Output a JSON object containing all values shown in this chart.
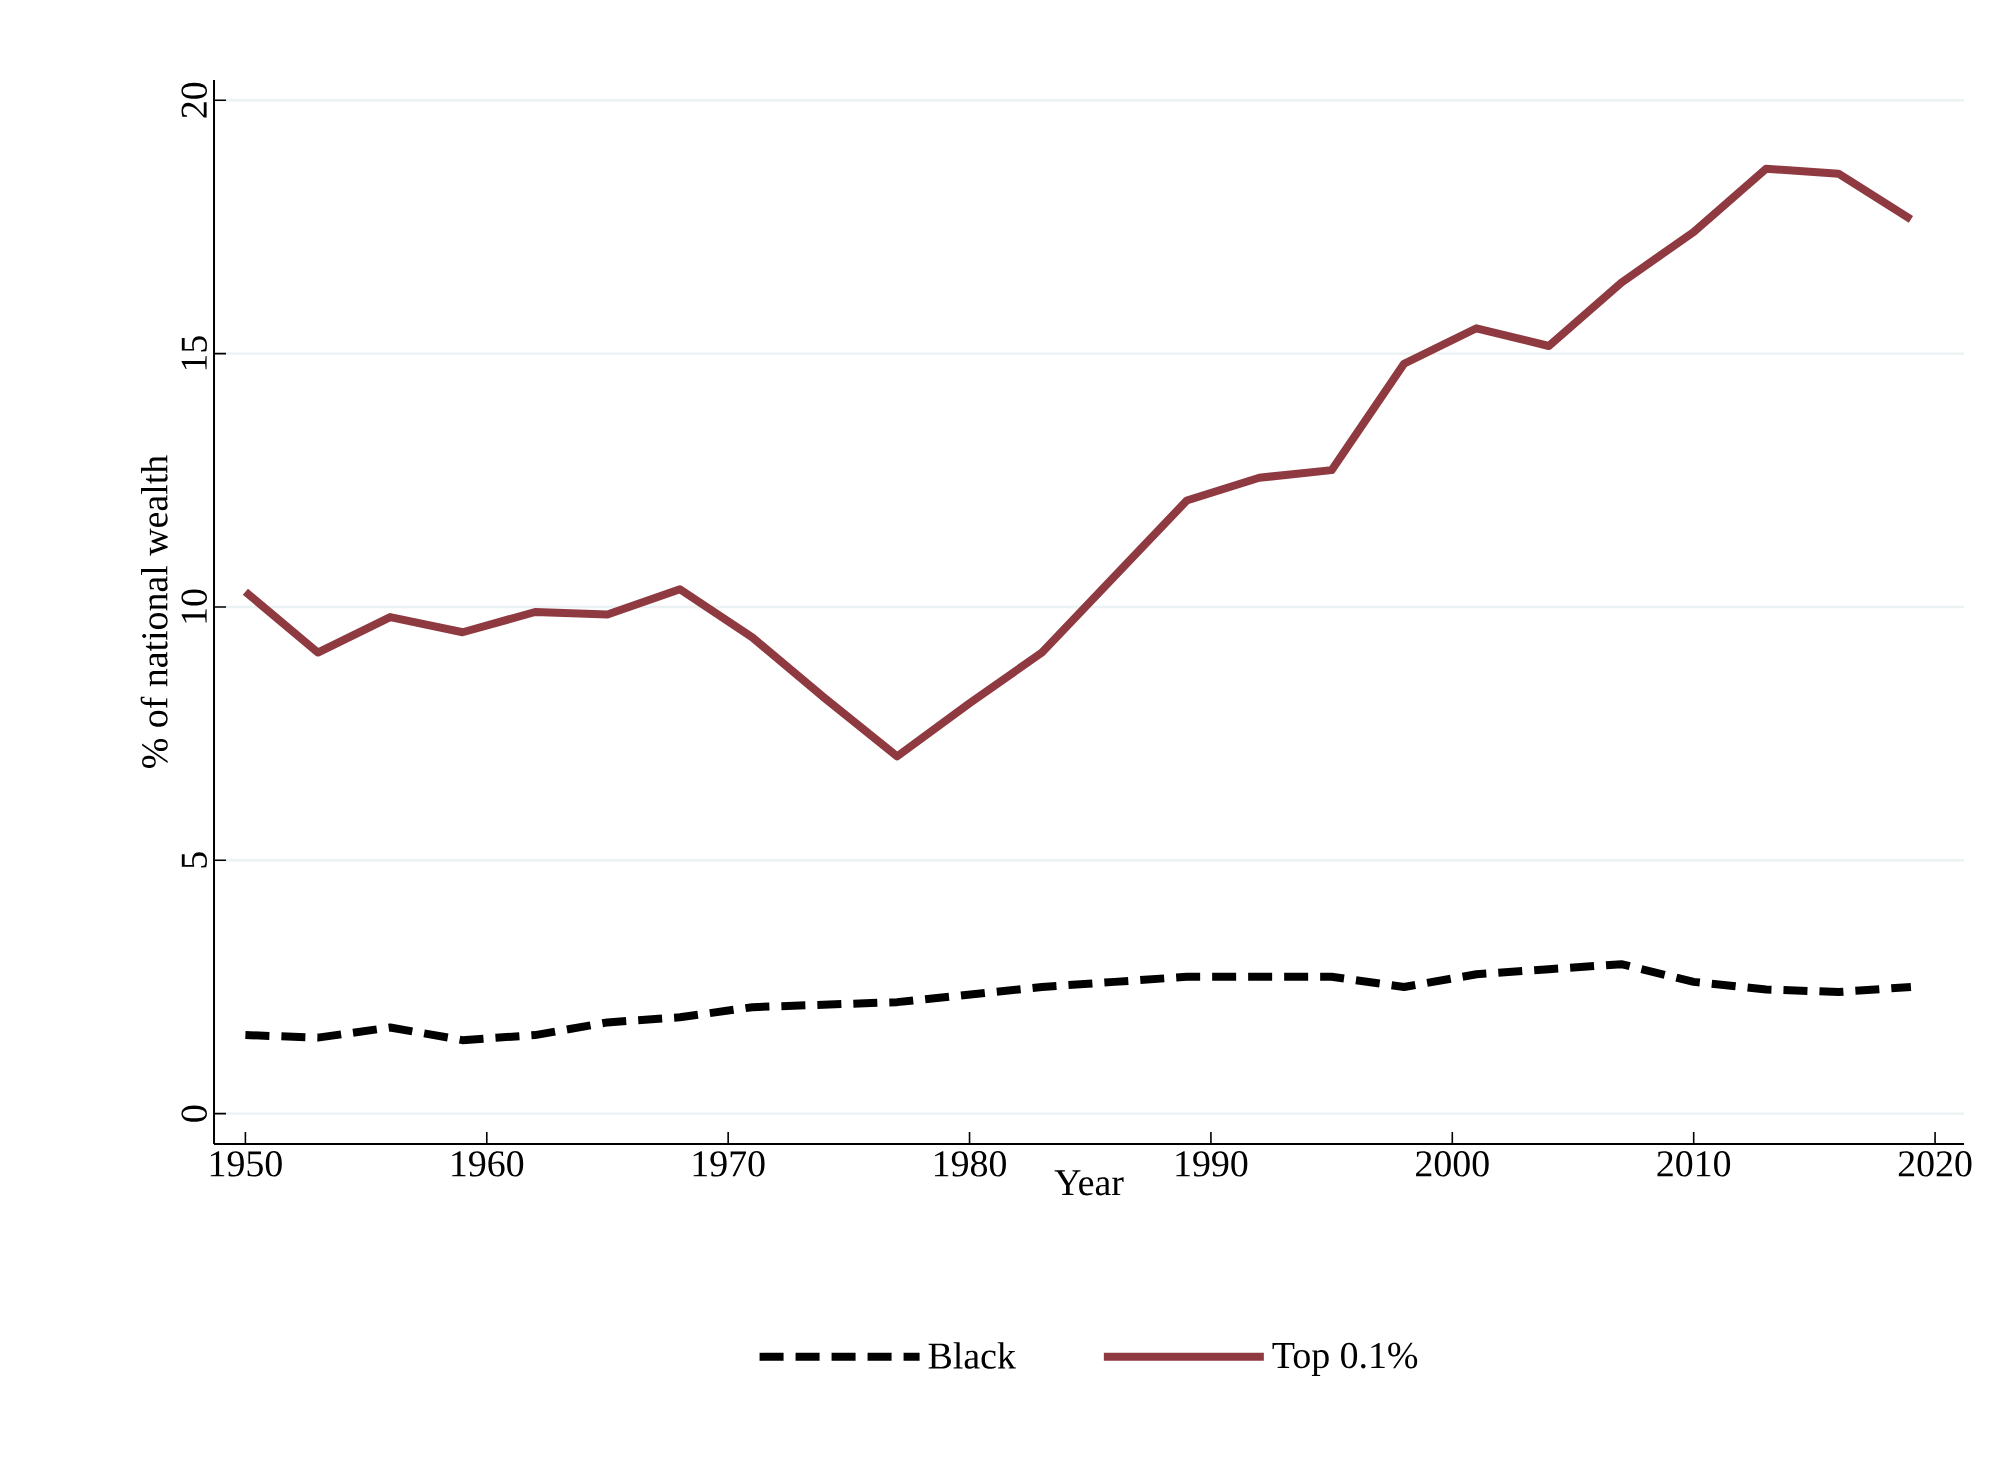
{
  "chart_data": {
    "type": "line",
    "xlabel": "Year",
    "ylabel": "% of national wealth",
    "x": [
      1950,
      1953,
      1956,
      1959,
      1962,
      1965,
      1968,
      1971,
      1974,
      1977,
      1980,
      1983,
      1986,
      1989,
      1992,
      1995,
      1998,
      2001,
      2004,
      2007,
      2010,
      2013,
      2016,
      2019
    ],
    "series": [
      {
        "name": "Black",
        "color": "#000000",
        "line_style": "dashed",
        "values": [
          1.55,
          1.5,
          1.7,
          1.45,
          1.55,
          1.8,
          1.9,
          2.1,
          2.15,
          2.2,
          2.35,
          2.5,
          2.6,
          2.7,
          2.7,
          2.7,
          2.5,
          2.75,
          2.85,
          2.95,
          2.6,
          2.45,
          2.4,
          2.5
        ]
      },
      {
        "name": "Top 0.1%",
        "color": "#8f3a40",
        "line_style": "solid",
        "values": [
          10.3,
          9.1,
          9.8,
          9.5,
          9.9,
          9.85,
          10.35,
          9.4,
          8.2,
          7.05,
          8.1,
          9.1,
          10.6,
          12.1,
          12.55,
          12.7,
          14.8,
          15.5,
          15.15,
          16.4,
          17.4,
          18.65,
          18.55,
          17.65
        ]
      }
    ],
    "xlim": [
      1948.7,
      2021.2
    ],
    "ylim": [
      -0.6,
      20.4
    ],
    "xticks": [
      1950,
      1960,
      1970,
      1980,
      1990,
      2000,
      2010,
      2020
    ],
    "yticks": [
      0,
      5,
      10,
      15,
      20
    ],
    "grid": "y",
    "legend": "bottom",
    "marker": "none"
  }
}
